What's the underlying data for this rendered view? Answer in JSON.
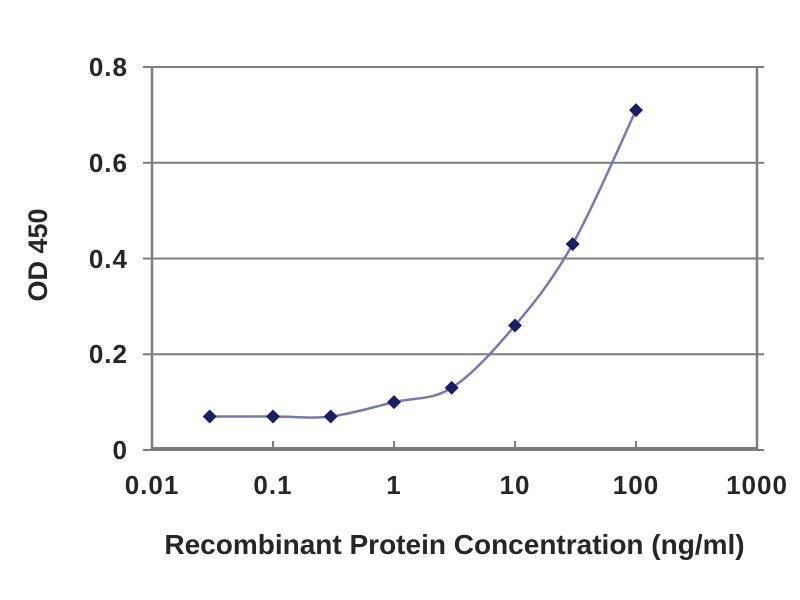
{
  "figure": {
    "background": "#fffffe",
    "grid_color": "#7d7d7d",
    "text_color": "#262626"
  },
  "chart_data": {
    "type": "line",
    "title": "",
    "xlabel": "Recombinant Protein Concentration (ng/ml)",
    "ylabel": "OD 450",
    "x_scale": "log",
    "xlim": [
      0.01,
      1000
    ],
    "ylim": [
      0,
      0.8
    ],
    "x_ticks": [
      0.01,
      0.1,
      1,
      10,
      100,
      1000
    ],
    "x_tick_labels": [
      "0.01",
      "0.1",
      "1",
      "10",
      "100",
      "1000"
    ],
    "y_ticks": [
      0,
      0.2,
      0.4,
      0.6,
      0.8
    ],
    "y_tick_labels": [
      "0",
      "0.2",
      "0.4",
      "0.6",
      "0.8"
    ],
    "grid": "horizontal",
    "legend_position": "none",
    "series": [
      {
        "name": "OD 450 vs concentration",
        "x": [
          0.03,
          0.1,
          0.3,
          1,
          3,
          10,
          30,
          100
        ],
        "y": [
          0.07,
          0.07,
          0.07,
          0.1,
          0.13,
          0.26,
          0.43,
          0.71
        ],
        "line_color": "#7878aa",
        "marker": "diamond",
        "marker_color": "#1d1d66"
      }
    ]
  }
}
